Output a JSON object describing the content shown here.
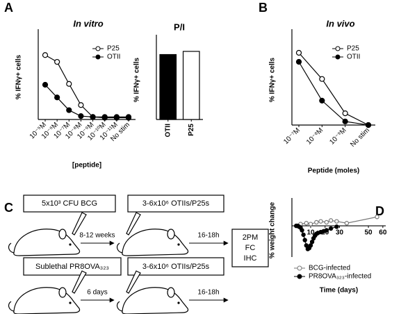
{
  "panels": [
    "A",
    "B",
    "C",
    "D"
  ],
  "chart_data": [
    {
      "type": "line",
      "title": "In vitro",
      "ylabel": "% IFNγ+ cells",
      "xlabel": "[peptide]",
      "categories": [
        "10⁻⁵M",
        "10⁻⁶M",
        "10⁻⁷M",
        "10⁻⁸M",
        "10⁻⁹M",
        "10⁻¹⁰M",
        "10⁻¹¹M",
        "No stim"
      ],
      "series": [
        {
          "name": "P25",
          "color": "#000000",
          "fill": "#ffffff",
          "values": [
            76,
            68,
            42,
            17,
            3,
            3,
            3,
            3
          ]
        },
        {
          "name": "OTII",
          "color": "#000000",
          "fill": "#000000",
          "values": [
            41,
            26,
            11,
            4,
            3,
            2,
            2,
            2
          ]
        }
      ],
      "ylim": [
        0,
        100
      ],
      "legend": "upper right"
    },
    {
      "type": "bar",
      "title": "P/I",
      "ylabel": "% IFNγ+ cells",
      "categories": [
        "OTII",
        "P25"
      ],
      "values": [
        82,
        86
      ],
      "colors": [
        "#000000",
        "#ffffff"
      ],
      "ylim": [
        0,
        100
      ]
    },
    {
      "type": "line",
      "title": "In vivo",
      "ylabel": "% IFNγ+ cells",
      "xlabel": "Peptide (moles)",
      "categories": [
        "10⁻⁷M",
        "10⁻⁸M",
        "10⁻⁹M",
        "No stim"
      ],
      "series": [
        {
          "name": "P25",
          "color": "#000000",
          "fill": "#ffffff",
          "values": [
            80,
            51,
            13,
            0
          ]
        },
        {
          "name": "OTII",
          "color": "#000000",
          "fill": "#000000",
          "values": [
            70,
            27,
            4,
            0
          ]
        }
      ],
      "ylim": [
        0,
        100
      ],
      "legend": "upper right"
    },
    {
      "type": "line",
      "ylabel": "% weight change",
      "xlabel": "Time (days)",
      "series": [
        {
          "name": "BCG-infected",
          "color": "#777777",
          "fill": "#ffffff",
          "x": [
            0,
            3,
            7,
            10,
            14,
            17,
            21,
            24,
            28,
            35,
            56
          ],
          "values": [
            0,
            2,
            3,
            2,
            4,
            5,
            4,
            6,
            5,
            3,
            10
          ]
        },
        {
          "name": "PR8OVA₃₂₃-infected",
          "color": "#000000",
          "fill": "#000000",
          "x": [
            0,
            1,
            2,
            3,
            4,
            5,
            6,
            7,
            8,
            9,
            10,
            11,
            12,
            13,
            14,
            15,
            17,
            19,
            21,
            24,
            28
          ],
          "values": [
            0,
            0,
            -1,
            -2,
            -5,
            -10,
            -16,
            -22,
            -26,
            -25,
            -22,
            -18,
            -14,
            -11,
            -9,
            -8,
            -7,
            -6,
            -5,
            -3,
            -1
          ]
        }
      ],
      "xlim": [
        -3,
        62
      ],
      "xticks": [
        10,
        20,
        30,
        50,
        60
      ],
      "ylim": [
        -35,
        25
      ],
      "legend": "lower right"
    }
  ],
  "diagram": {
    "boxes": [
      "5x10³ CFU BCG",
      "3-6x10⁶ OTIIs/P25s",
      "Sublethal PR8OVA₃₂₃",
      "3-6x10⁶ OTIIs/P25s"
    ],
    "arrows": [
      "8-12 weeks",
      "16-18h",
      "6 days",
      "16-18h"
    ],
    "readout": [
      "2PM",
      "FC",
      "IHC"
    ]
  }
}
